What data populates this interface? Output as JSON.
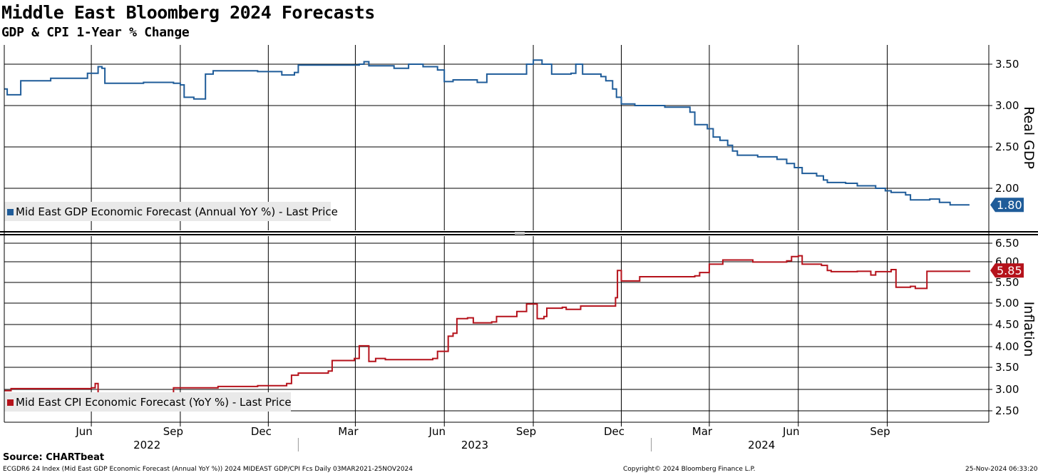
{
  "title": "Middle East Bloomberg 2024 Forecasts",
  "subtitle": "GDP & CPI 1-Year % Change",
  "source": "Source: CHARTbeat",
  "footer": {
    "left": "ECGDR6 24 Index (Mid East GDP Economic Forecast (Annual YoY %)) 2024 MIDEAST GDP/CPI Fcs  Daily 03MAR2021-25NOV2024",
    "center": "Copyright© 2024 Bloomberg Finance L.P.",
    "right": "25-Nov-2024 06:33:20"
  },
  "colors": {
    "gdp": "#1f5c99",
    "cpi": "#b5121b"
  },
  "chart_data": {
    "type": "line",
    "x_month_labels": [
      "Jun",
      "Sep",
      "Dec",
      "Mar",
      "Jun",
      "Sep",
      "Dec",
      "Mar",
      "Jun",
      "Sep"
    ],
    "x_month_dates": [
      "2022-06-01",
      "2022-09-01",
      "2022-12-01",
      "2023-03-01",
      "2023-06-01",
      "2023-09-01",
      "2023-12-01",
      "2024-03-01",
      "2024-06-01",
      "2024-09-01"
    ],
    "x_year_labels": [
      "2022",
      "2023",
      "2024"
    ],
    "x_range": [
      "2022-03-03",
      "2024-12-15"
    ],
    "grid": true,
    "panels": [
      {
        "axis_title": "Real GDP",
        "yticks": [
          "3.50",
          "3.00",
          "2.50",
          "2.00"
        ],
        "ylim": [
          1.5,
          3.7
        ],
        "last_value_label": "1.80",
        "series": [
          {
            "name": "Mid East GDP Economic Forecast (Annual YoY %) - Last Price",
            "color_key": "gdp",
            "points": [
              [
                "2022-03-03",
                3.2
              ],
              [
                "2022-03-06",
                3.13
              ],
              [
                "2022-03-20",
                3.3
              ],
              [
                "2022-04-20",
                3.33
              ],
              [
                "2022-05-28",
                3.39
              ],
              [
                "2022-06-08",
                3.47
              ],
              [
                "2022-06-12",
                3.45
              ],
              [
                "2022-06-15",
                3.27
              ],
              [
                "2022-07-25",
                3.28
              ],
              [
                "2022-08-25",
                3.27
              ],
              [
                "2022-09-01",
                3.25
              ],
              [
                "2022-09-05",
                3.1
              ],
              [
                "2022-09-15",
                3.08
              ],
              [
                "2022-09-25",
                3.08
              ],
              [
                "2022-09-27",
                3.38
              ],
              [
                "2022-10-05",
                3.42
              ],
              [
                "2022-11-20",
                3.41
              ],
              [
                "2022-12-15",
                3.37
              ],
              [
                "2022-12-28",
                3.4
              ],
              [
                "2023-01-01",
                3.49
              ],
              [
                "2023-02-15",
                3.49
              ],
              [
                "2023-03-05",
                3.5
              ],
              [
                "2023-03-10",
                3.53
              ],
              [
                "2023-03-15",
                3.48
              ],
              [
                "2023-04-10",
                3.45
              ],
              [
                "2023-04-25",
                3.5
              ],
              [
                "2023-05-10",
                3.47
              ],
              [
                "2023-05-25",
                3.43
              ],
              [
                "2023-06-01",
                3.29
              ],
              [
                "2023-06-10",
                3.31
              ],
              [
                "2023-07-05",
                3.28
              ],
              [
                "2023-07-15",
                3.38
              ],
              [
                "2023-08-20",
                3.38
              ],
              [
                "2023-08-25",
                3.5
              ],
              [
                "2023-09-01",
                3.55
              ],
              [
                "2023-09-10",
                3.5
              ],
              [
                "2023-09-20",
                3.38
              ],
              [
                "2023-10-10",
                3.39
              ],
              [
                "2023-10-15",
                3.5
              ],
              [
                "2023-10-22",
                3.38
              ],
              [
                "2023-11-10",
                3.35
              ],
              [
                "2023-11-15",
                3.3
              ],
              [
                "2023-11-22",
                3.2
              ],
              [
                "2023-11-26",
                3.1
              ],
              [
                "2023-12-01",
                3.02
              ],
              [
                "2023-12-15",
                3.0
              ],
              [
                "2024-01-15",
                2.98
              ],
              [
                "2024-02-10",
                2.92
              ],
              [
                "2024-02-15",
                2.77
              ],
              [
                "2024-02-28",
                2.72
              ],
              [
                "2024-03-05",
                2.62
              ],
              [
                "2024-03-12",
                2.58
              ],
              [
                "2024-03-20",
                2.52
              ],
              [
                "2024-03-25",
                2.45
              ],
              [
                "2024-03-30",
                2.4
              ],
              [
                "2024-04-20",
                2.38
              ],
              [
                "2024-05-10",
                2.35
              ],
              [
                "2024-05-20",
                2.3
              ],
              [
                "2024-05-28",
                2.25
              ],
              [
                "2024-06-05",
                2.18
              ],
              [
                "2024-06-20",
                2.15
              ],
              [
                "2024-06-27",
                2.1
              ],
              [
                "2024-07-01",
                2.07
              ],
              [
                "2024-07-20",
                2.06
              ],
              [
                "2024-08-01",
                2.03
              ],
              [
                "2024-08-20",
                2.0
              ],
              [
                "2024-08-30",
                1.97
              ],
              [
                "2024-09-05",
                1.95
              ],
              [
                "2024-09-20",
                1.92
              ],
              [
                "2024-09-25",
                1.86
              ],
              [
                "2024-10-15",
                1.87
              ],
              [
                "2024-10-25",
                1.83
              ],
              [
                "2024-11-05",
                1.8
              ],
              [
                "2024-11-25",
                1.8
              ]
            ]
          }
        ]
      },
      {
        "axis_title": "Inflation",
        "yticks": [
          "6.50",
          "6.00",
          "5.50",
          "5.00",
          "4.50",
          "4.00",
          "3.50",
          "3.00",
          "2.50"
        ],
        "ylim": [
          2.3,
          6.6
        ],
        "last_value_label": "5.85",
        "series": [
          {
            "name": "Mid East CPI Economic Forecast (YoY %) - Last Price",
            "color_key": "cpi",
            "points": [
              [
                "2022-03-03",
                2.98
              ],
              [
                "2022-03-10",
                3.03
              ],
              [
                "2022-06-01",
                3.05
              ],
              [
                "2022-06-05",
                3.15
              ],
              [
                "2022-06-08",
                2.9
              ],
              [
                "2022-08-20",
                2.9
              ],
              [
                "2022-08-25",
                3.05
              ],
              [
                "2022-10-10",
                3.08
              ],
              [
                "2022-11-20",
                3.1
              ],
              [
                "2022-12-20",
                3.15
              ],
              [
                "2022-12-25",
                3.35
              ],
              [
                "2023-01-01",
                3.4
              ],
              [
                "2023-02-01",
                3.45
              ],
              [
                "2023-02-05",
                3.7
              ],
              [
                "2023-02-28",
                3.75
              ],
              [
                "2023-03-05",
                4.05
              ],
              [
                "2023-03-12",
                4.05
              ],
              [
                "2023-03-15",
                3.68
              ],
              [
                "2023-03-22",
                3.75
              ],
              [
                "2023-04-01",
                3.72
              ],
              [
                "2023-05-20",
                3.75
              ],
              [
                "2023-05-25",
                3.92
              ],
              [
                "2023-06-05",
                4.28
              ],
              [
                "2023-06-10",
                4.35
              ],
              [
                "2023-06-14",
                4.7
              ],
              [
                "2023-06-25",
                4.72
              ],
              [
                "2023-07-01",
                4.6
              ],
              [
                "2023-07-20",
                4.62
              ],
              [
                "2023-07-25",
                4.75
              ],
              [
                "2023-08-15",
                4.87
              ],
              [
                "2023-08-25",
                5.05
              ],
              [
                "2023-09-01",
                5.05
              ],
              [
                "2023-09-05",
                4.7
              ],
              [
                "2023-09-12",
                4.75
              ],
              [
                "2023-09-15",
                4.95
              ],
              [
                "2023-10-01",
                4.97
              ],
              [
                "2023-10-05",
                4.92
              ],
              [
                "2023-10-20",
                5.0
              ],
              [
                "2023-11-20",
                5.0
              ],
              [
                "2023-11-25",
                5.2
              ],
              [
                "2023-11-27",
                5.85
              ],
              [
                "2023-12-01",
                5.6
              ],
              [
                "2023-12-15",
                5.6
              ],
              [
                "2023-12-20",
                5.7
              ],
              [
                "2024-02-15",
                5.72
              ],
              [
                "2024-02-20",
                5.8
              ],
              [
                "2024-03-01",
                6.0
              ],
              [
                "2024-03-15",
                6.1
              ],
              [
                "2024-04-15",
                6.05
              ],
              [
                "2024-05-20",
                6.08
              ],
              [
                "2024-05-25",
                6.18
              ],
              [
                "2024-06-01",
                6.2
              ],
              [
                "2024-06-05",
                6.0
              ],
              [
                "2024-06-25",
                5.97
              ],
              [
                "2024-07-01",
                5.85
              ],
              [
                "2024-07-05",
                5.82
              ],
              [
                "2024-08-01",
                5.83
              ],
              [
                "2024-08-15",
                5.74
              ],
              [
                "2024-08-20",
                5.82
              ],
              [
                "2024-09-05",
                5.87
              ],
              [
                "2024-09-10",
                5.45
              ],
              [
                "2024-09-25",
                5.47
              ],
              [
                "2024-09-30",
                5.42
              ],
              [
                "2024-10-10",
                5.42
              ],
              [
                "2024-10-12",
                5.83
              ],
              [
                "2024-11-25",
                5.85
              ]
            ]
          }
        ]
      }
    ]
  }
}
